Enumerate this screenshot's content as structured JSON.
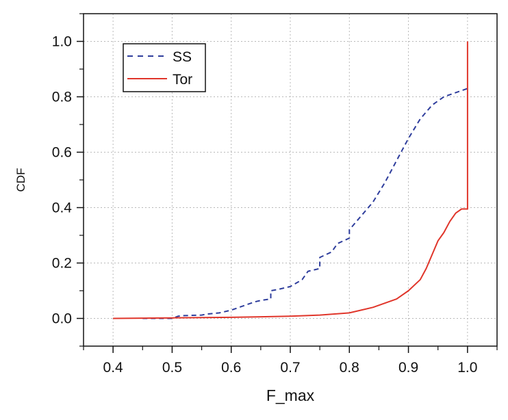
{
  "chart_data": {
    "type": "line",
    "title": "",
    "xlabel": "F_max",
    "ylabel": "CDF",
    "xlim": [
      0.35,
      1.05
    ],
    "ylim": [
      -0.1,
      1.1
    ],
    "xticks": [
      0.4,
      0.5,
      0.6,
      0.7,
      0.8,
      0.9,
      1.0
    ],
    "xtick_labels": [
      "0.4",
      "0.5",
      "0.6",
      "0.7",
      "0.8",
      "0.9",
      "1.0"
    ],
    "yticks": [
      0.0,
      0.2,
      0.4,
      0.6,
      0.8,
      1.0
    ],
    "ytick_labels": [
      "0.0",
      "0.2",
      "0.4",
      "0.6",
      "0.8",
      "1.0"
    ],
    "grid": true,
    "legend": {
      "position": "top-left",
      "entries": [
        "SS",
        "Tor"
      ]
    },
    "series": [
      {
        "name": "SS",
        "color": "#2e3d9c",
        "style": "dashed",
        "x": [
          0.45,
          0.5,
          0.51,
          0.52,
          0.55,
          0.56,
          0.58,
          0.6,
          0.62,
          0.64,
          0.65,
          0.667,
          0.667,
          0.68,
          0.7,
          0.72,
          0.73,
          0.75,
          0.75,
          0.77,
          0.78,
          0.8,
          0.8,
          0.82,
          0.84,
          0.86,
          0.88,
          0.9,
          0.92,
          0.94,
          0.96,
          0.98,
          1.0
        ],
        "y": [
          0.0,
          0.0,
          0.008,
          0.01,
          0.012,
          0.016,
          0.02,
          0.03,
          0.045,
          0.06,
          0.065,
          0.07,
          0.1,
          0.105,
          0.115,
          0.14,
          0.17,
          0.18,
          0.22,
          0.24,
          0.27,
          0.29,
          0.32,
          0.37,
          0.42,
          0.49,
          0.57,
          0.65,
          0.72,
          0.77,
          0.8,
          0.815,
          0.83
        ]
      },
      {
        "name": "Tor",
        "color": "#e0352a",
        "style": "solid",
        "x": [
          0.4,
          0.5,
          0.6,
          0.7,
          0.75,
          0.8,
          0.82,
          0.84,
          0.86,
          0.88,
          0.9,
          0.92,
          0.93,
          0.94,
          0.95,
          0.96,
          0.97,
          0.98,
          0.99,
          1.0,
          1.0
        ],
        "y": [
          0.0,
          0.002,
          0.004,
          0.008,
          0.012,
          0.02,
          0.03,
          0.04,
          0.055,
          0.07,
          0.1,
          0.14,
          0.18,
          0.23,
          0.28,
          0.31,
          0.35,
          0.38,
          0.395,
          0.395,
          1.0
        ]
      }
    ]
  }
}
